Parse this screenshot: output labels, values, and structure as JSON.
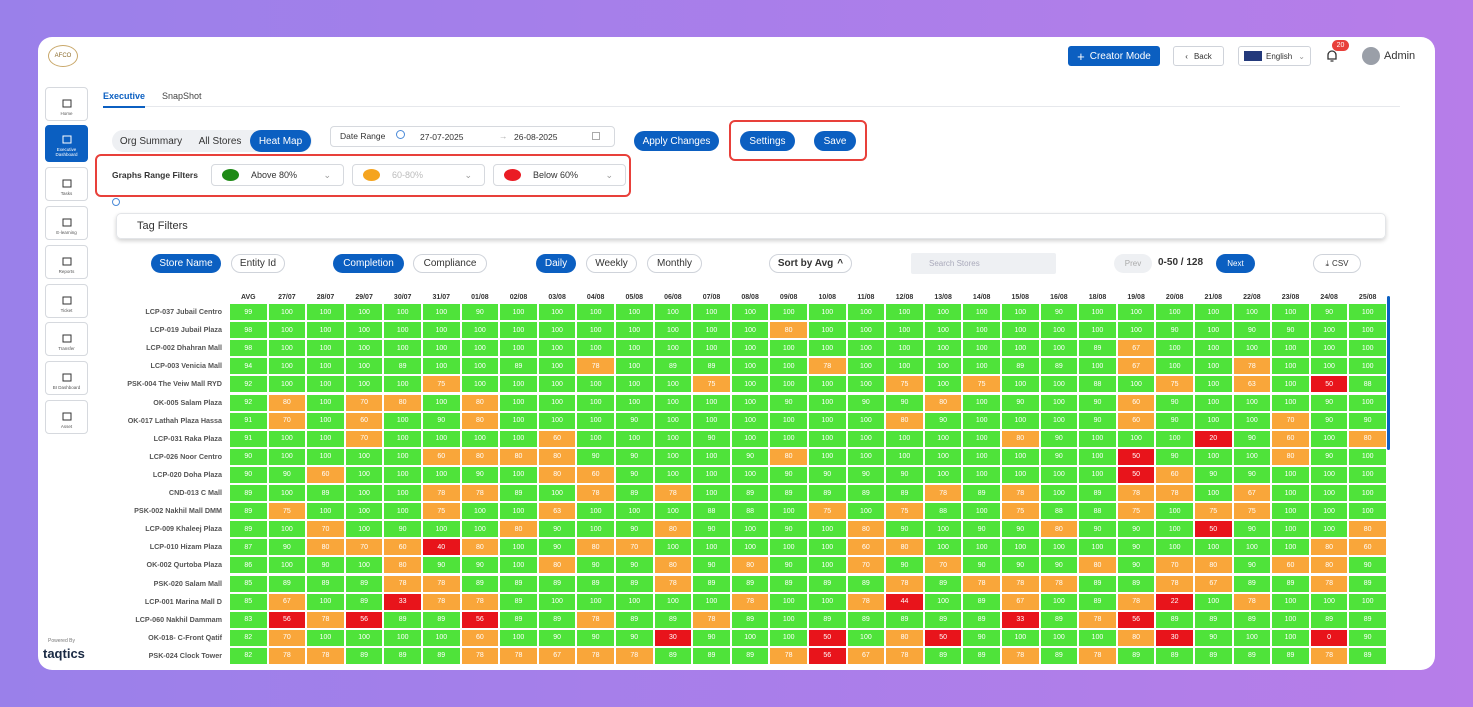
{
  "header": {
    "logo": "AFCO",
    "creator_mode": "Creator Mode",
    "back": "Back",
    "language": "English",
    "notifications": "20",
    "user": "Admin"
  },
  "sidebar": {
    "items": [
      "Home",
      "Executive Dashboard",
      "Tasks",
      "E-learning",
      "Reports",
      "Ticket",
      "Transfer",
      "BI Dashboard",
      "Asset"
    ],
    "powered_by": "Powered By",
    "brand": "taqtics"
  },
  "tabs": [
    "Executive",
    "SnapShot"
  ],
  "view_toggle": [
    "Org Summary",
    "All Stores",
    "Heat Map"
  ],
  "date_range": {
    "label": "Date Range",
    "start": "27-07-2025",
    "end": "26-08-2025"
  },
  "buttons": {
    "apply": "Apply Changes",
    "settings": "Settings",
    "save": "Save"
  },
  "range_filters": {
    "label": "Graphs Range Filters",
    "options": [
      {
        "label": "Above 80%",
        "color": "#1e8a16"
      },
      {
        "label": "60-80%",
        "color": "#f5a41f"
      },
      {
        "label": "Below 60%",
        "color": "#ea1c24"
      }
    ]
  },
  "tag_filters": "Tag Filters",
  "toolbar": {
    "group_by": [
      "Store Name",
      "Entity Id"
    ],
    "metric": [
      "Completion",
      "Compliance"
    ],
    "period": [
      "Daily",
      "Weekly",
      "Monthly"
    ],
    "sort": "Sort by Avg",
    "search_placeholder": "Search Stores",
    "prev": "Prev",
    "page_info": "0-50 / 128",
    "next": "Next",
    "csv": "CSV"
  },
  "table": {
    "columns": [
      "AVG",
      "27/07",
      "28/07",
      "29/07",
      "30/07",
      "31/07",
      "01/08",
      "02/08",
      "03/08",
      "04/08",
      "05/08",
      "06/08",
      "07/08",
      "08/08",
      "09/08",
      "10/08",
      "11/08",
      "12/08",
      "13/08",
      "14/08",
      "15/08",
      "16/08",
      "18/08",
      "19/08",
      "20/08",
      "21/08",
      "22/08",
      "23/08",
      "24/08",
      "25/08"
    ],
    "rows": [
      {
        "store": "LCP-037 Jubail Centro",
        "values": [
          99,
          100,
          100,
          100,
          100,
          100,
          90,
          100,
          100,
          100,
          100,
          100,
          100,
          100,
          100,
          100,
          100,
          100,
          100,
          100,
          100,
          90,
          100,
          100,
          100,
          100,
          100,
          100,
          90,
          100
        ]
      },
      {
        "store": "LCP-019 Jubail Plaza",
        "values": [
          98,
          100,
          100,
          100,
          100,
          100,
          100,
          100,
          100,
          100,
          100,
          100,
          100,
          100,
          80,
          100,
          100,
          100,
          100,
          100,
          100,
          100,
          100,
          100,
          90,
          100,
          90,
          90,
          100,
          100
        ]
      },
      {
        "store": "LCP-002 Dhahran Mall",
        "values": [
          98,
          100,
          100,
          100,
          100,
          100,
          100,
          100,
          100,
          100,
          100,
          100,
          100,
          100,
          100,
          100,
          100,
          100,
          100,
          100,
          100,
          100,
          89,
          67,
          100,
          100,
          100,
          100,
          100,
          100
        ]
      },
      {
        "store": "LCP-003 Venicia Mall",
        "values": [
          94,
          100,
          100,
          100,
          89,
          100,
          100,
          89,
          100,
          78,
          100,
          89,
          89,
          100,
          100,
          78,
          100,
          100,
          100,
          100,
          89,
          89,
          100,
          67,
          100,
          100,
          78,
          100,
          100,
          100
        ]
      },
      {
        "store": "PSK-004 The Veiw Mall RYD",
        "values": [
          92,
          100,
          100,
          100,
          100,
          75,
          100,
          100,
          100,
          100,
          100,
          100,
          75,
          100,
          100,
          100,
          100,
          75,
          100,
          75,
          100,
          100,
          88,
          100,
          75,
          100,
          63,
          100,
          50,
          88
        ]
      },
      {
        "store": "OK-005 Salam Plaza",
        "values": [
          92,
          80,
          100,
          70,
          80,
          100,
          80,
          100,
          100,
          100,
          100,
          100,
          100,
          100,
          90,
          100,
          90,
          90,
          80,
          100,
          90,
          100,
          90,
          60,
          90,
          100,
          100,
          100,
          90,
          100
        ]
      },
      {
        "store": "OK-017 Lathah Plaza Hassa",
        "values": [
          91,
          70,
          100,
          60,
          100,
          90,
          80,
          100,
          100,
          100,
          90,
          100,
          100,
          100,
          100,
          100,
          100,
          80,
          90,
          100,
          100,
          100,
          90,
          60,
          90,
          100,
          100,
          70,
          90,
          90
        ]
      },
      {
        "store": "LCP-031 Raka Plaza",
        "values": [
          91,
          100,
          100,
          70,
          100,
          100,
          100,
          100,
          60,
          100,
          100,
          100,
          90,
          100,
          100,
          100,
          100,
          100,
          100,
          100,
          80,
          90,
          100,
          100,
          100,
          20,
          90,
          60,
          100,
          80
        ]
      },
      {
        "store": "LCP-026 Noor Centro",
        "values": [
          90,
          100,
          100,
          100,
          100,
          60,
          80,
          80,
          80,
          90,
          90,
          100,
          100,
          90,
          80,
          100,
          100,
          100,
          100,
          100,
          100,
          90,
          100,
          50,
          90,
          100,
          100,
          80,
          90,
          100
        ]
      },
      {
        "store": "LCP-020 Doha Plaza",
        "values": [
          90,
          90,
          60,
          100,
          100,
          100,
          90,
          100,
          80,
          60,
          90,
          100,
          100,
          100,
          90,
          90,
          90,
          90,
          100,
          100,
          100,
          100,
          100,
          50,
          60,
          90,
          90,
          100,
          100,
          100
        ]
      },
      {
        "store": "CND-013 C Mall",
        "values": [
          89,
          100,
          89,
          100,
          100,
          78,
          78,
          89,
          100,
          78,
          89,
          78,
          100,
          89,
          89,
          89,
          89,
          89,
          78,
          89,
          78,
          100,
          89,
          78,
          78,
          100,
          67,
          100,
          100,
          100
        ]
      },
      {
        "store": "PSK-002 Nakhil Mall DMM",
        "values": [
          89,
          75,
          100,
          100,
          100,
          75,
          100,
          100,
          63,
          100,
          100,
          100,
          88,
          88,
          100,
          75,
          100,
          75,
          88,
          100,
          75,
          88,
          88,
          75,
          100,
          75,
          75,
          100,
          100,
          100
        ]
      },
      {
        "store": "LCP-009 Khaleej Plaza",
        "values": [
          89,
          100,
          70,
          100,
          90,
          100,
          100,
          80,
          90,
          100,
          90,
          80,
          90,
          100,
          90,
          100,
          80,
          90,
          100,
          90,
          90,
          80,
          90,
          90,
          100,
          50,
          90,
          100,
          100,
          80
        ]
      },
      {
        "store": "LCP-010 Hizam Plaza",
        "values": [
          87,
          90,
          80,
          70,
          60,
          40,
          80,
          100,
          90,
          80,
          70,
          100,
          100,
          100,
          100,
          100,
          60,
          80,
          100,
          100,
          100,
          100,
          100,
          90,
          100,
          100,
          100,
          100,
          80,
          60
        ]
      },
      {
        "store": "OK-002 Qurtoba Plaza",
        "values": [
          86,
          100,
          90,
          100,
          80,
          90,
          90,
          100,
          80,
          90,
          90,
          80,
          90,
          80,
          90,
          100,
          70,
          90,
          70,
          90,
          90,
          90,
          80,
          90,
          70,
          80,
          90,
          60,
          80,
          90
        ]
      },
      {
        "store": "PSK-020 Salam Mall",
        "values": [
          85,
          89,
          89,
          89,
          78,
          78,
          89,
          89,
          89,
          89,
          89,
          78,
          89,
          89,
          89,
          89,
          89,
          78,
          89,
          78,
          78,
          78,
          89,
          89,
          78,
          67,
          89,
          89,
          78,
          89
        ]
      },
      {
        "store": "LCP-001 Marina Mall D",
        "values": [
          85,
          67,
          100,
          89,
          33,
          78,
          78,
          89,
          100,
          100,
          100,
          100,
          100,
          78,
          100,
          100,
          78,
          44,
          100,
          89,
          67,
          100,
          89,
          78,
          22,
          100,
          78,
          100,
          100,
          100
        ]
      },
      {
        "store": "LCP-060 Nakhil Dammam",
        "values": [
          83,
          56,
          78,
          56,
          89,
          89,
          56,
          89,
          89,
          78,
          89,
          89,
          78,
          89,
          100,
          89,
          89,
          89,
          89,
          89,
          33,
          89,
          78,
          56,
          89,
          89,
          89,
          100,
          89,
          89
        ]
      },
      {
        "store": "OK-018- C-Front Qatif",
        "values": [
          82,
          70,
          100,
          100,
          100,
          100,
          60,
          100,
          90,
          90,
          90,
          30,
          90,
          100,
          100,
          50,
          100,
          80,
          50,
          90,
          100,
          100,
          100,
          80,
          30,
          90,
          100,
          100,
          0,
          90
        ]
      },
      {
        "store": "PSK-024 Clock Tower",
        "values": [
          82,
          78,
          78,
          89,
          89,
          89,
          78,
          78,
          67,
          78,
          78,
          89,
          89,
          89,
          78,
          56,
          67,
          78,
          89,
          89,
          78,
          89,
          78,
          89,
          89,
          89,
          89,
          89,
          78,
          89
        ]
      }
    ]
  }
}
